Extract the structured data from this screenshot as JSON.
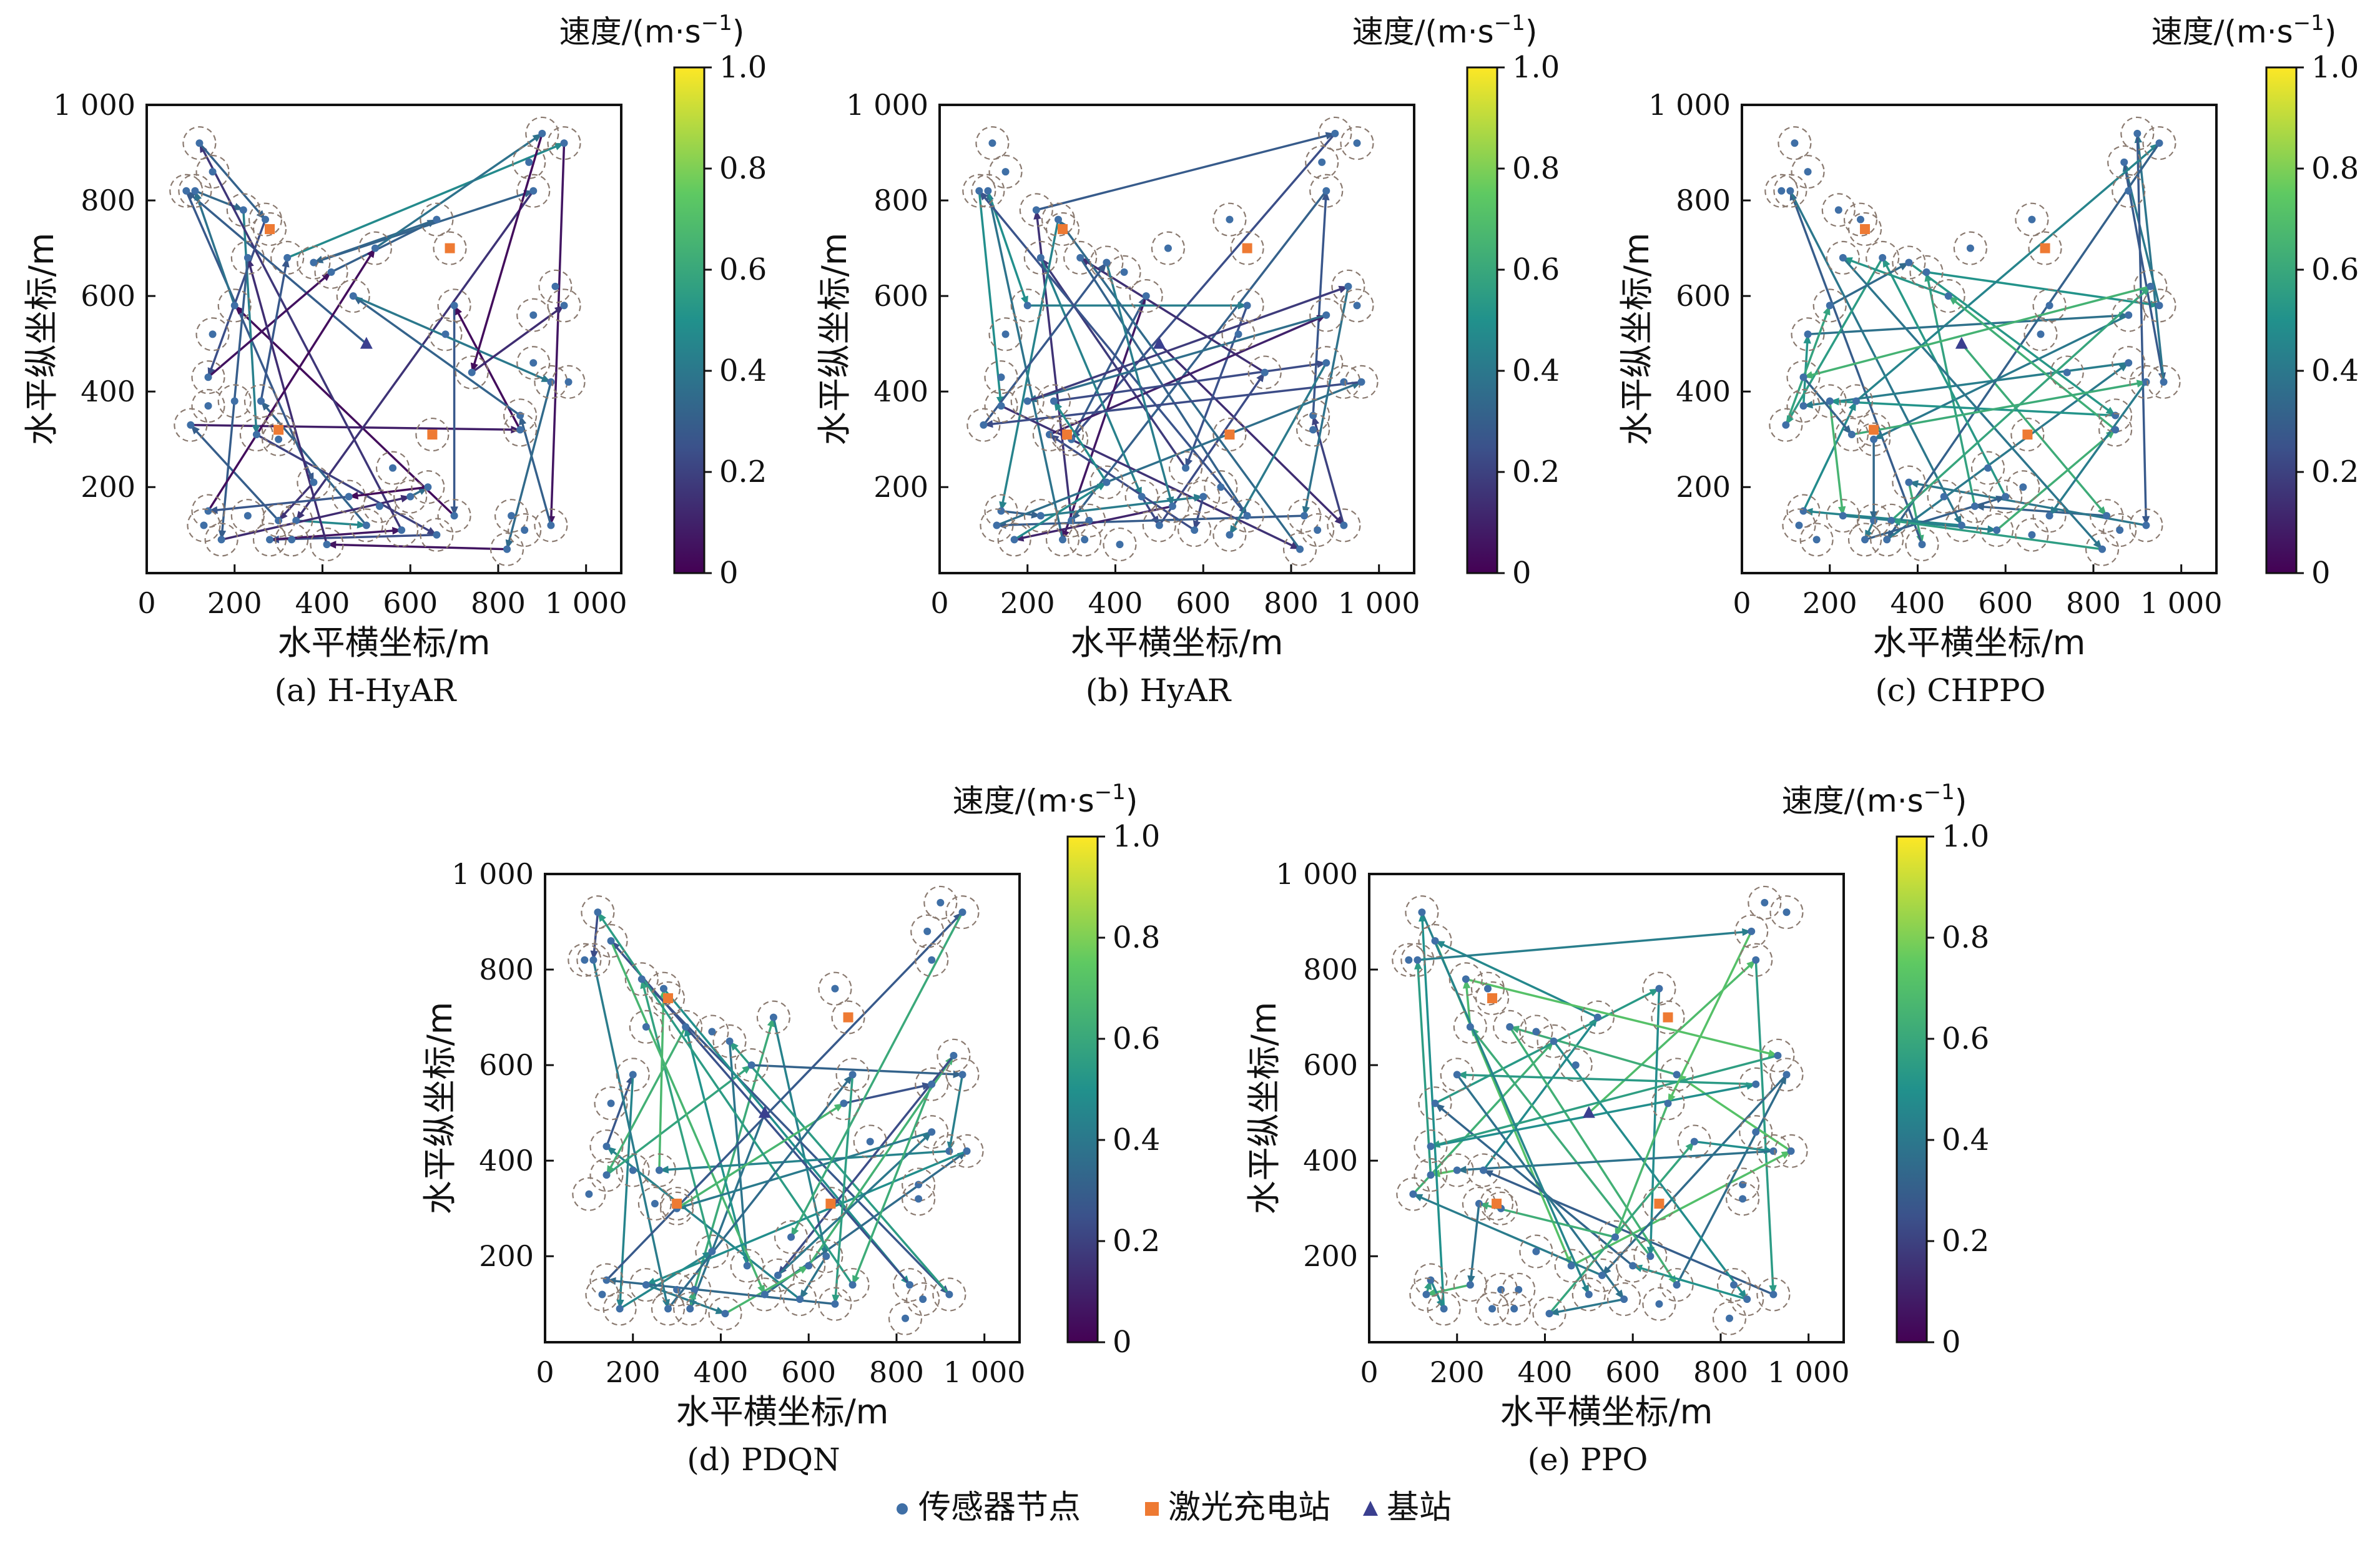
{
  "figure": {
    "legend": [
      {
        "label": "传感器节点",
        "marker": "circle",
        "color": "#3f6fa6"
      },
      {
        "label": "激光充电站",
        "marker": "square",
        "color": "#ee7a33"
      },
      {
        "label": "基站",
        "marker": "triangle",
        "color": "#3a3f8f"
      }
    ],
    "colorbar": {
      "label_prefix": "速度/(m·s",
      "label_sup": "−1",
      "label_suffix": ")",
      "ticks": [
        "0",
        "0.2",
        "0.4",
        "0.6",
        "0.8",
        "1.0"
      ],
      "colormap": "viridis",
      "stops": [
        "#440154",
        "#3b528b",
        "#21918c",
        "#5ec962",
        "#fde725"
      ]
    }
  },
  "chart_data": [
    {
      "type": "scatter",
      "title": "(a) H-HyAR",
      "xlabel": "水平横坐标/m",
      "ylabel": "水平纵坐标/m",
      "xlim": [
        0,
        1080
      ],
      "ylim": [
        20,
        1000
      ],
      "xticks": [
        "0",
        "200",
        "400",
        "600",
        "800",
        "1 000"
      ],
      "yticks": [
        "200",
        "400",
        "600",
        "800",
        "1 000"
      ],
      "sensor_nodes": [
        [
          120,
          920
        ],
        [
          110,
          820
        ],
        [
          150,
          860
        ],
        [
          90,
          820
        ],
        [
          220,
          780
        ],
        [
          270,
          760
        ],
        [
          230,
          680
        ],
        [
          320,
          680
        ],
        [
          200,
          580
        ],
        [
          150,
          520
        ],
        [
          140,
          430
        ],
        [
          100,
          330
        ],
        [
          140,
          370
        ],
        [
          200,
          380
        ],
        [
          260,
          380
        ],
        [
          250,
          310
        ],
        [
          300,
          300
        ],
        [
          140,
          150
        ],
        [
          170,
          90
        ],
        [
          130,
          120
        ],
        [
          230,
          140
        ],
        [
          300,
          130
        ],
        [
          280,
          90
        ],
        [
          340,
          130
        ],
        [
          330,
          90
        ],
        [
          410,
          80
        ],
        [
          380,
          210
        ],
        [
          460,
          180
        ],
        [
          500,
          120
        ],
        [
          580,
          110
        ],
        [
          560,
          240
        ],
        [
          640,
          200
        ],
        [
          700,
          140
        ],
        [
          660,
          100
        ],
        [
          830,
          140
        ],
        [
          860,
          110
        ],
        [
          820,
          70
        ],
        [
          920,
          120
        ],
        [
          880,
          460
        ],
        [
          920,
          420
        ],
        [
          850,
          350
        ],
        [
          850,
          320
        ],
        [
          960,
          420
        ],
        [
          930,
          620
        ],
        [
          880,
          560
        ],
        [
          950,
          580
        ],
        [
          700,
          580
        ],
        [
          680,
          520
        ],
        [
          740,
          440
        ],
        [
          660,
          760
        ],
        [
          880,
          820
        ],
        [
          900,
          940
        ],
        [
          950,
          920
        ],
        [
          870,
          880
        ],
        [
          600,
          180
        ],
        [
          530,
          160
        ],
        [
          420,
          650
        ],
        [
          380,
          670
        ],
        [
          470,
          600
        ],
        [
          520,
          700
        ]
      ],
      "charging_stations": [
        [
          280,
          740
        ],
        [
          690,
          700
        ],
        [
          300,
          320
        ],
        [
          650,
          310
        ]
      ],
      "base_station": [
        500,
        500
      ],
      "path_speed_mean": 0.25
    },
    {
      "type": "scatter",
      "title": "(b) HyAR",
      "xlabel": "水平横坐标/m",
      "ylabel": "水平纵坐标/m",
      "xlim": [
        0,
        1080
      ],
      "ylim": [
        20,
        1000
      ],
      "xticks": [
        "0",
        "200",
        "400",
        "600",
        "800",
        "1 000"
      ],
      "yticks": [
        "200",
        "400",
        "600",
        "800",
        "1 000"
      ],
      "sensor_nodes": [
        [
          120,
          920
        ],
        [
          110,
          820
        ],
        [
          150,
          860
        ],
        [
          90,
          820
        ],
        [
          220,
          780
        ],
        [
          270,
          760
        ],
        [
          230,
          680
        ],
        [
          320,
          680
        ],
        [
          200,
          580
        ],
        [
          150,
          520
        ],
        [
          140,
          430
        ],
        [
          100,
          330
        ],
        [
          140,
          370
        ],
        [
          200,
          380
        ],
        [
          260,
          380
        ],
        [
          250,
          310
        ],
        [
          300,
          300
        ],
        [
          140,
          150
        ],
        [
          170,
          90
        ],
        [
          130,
          120
        ],
        [
          230,
          140
        ],
        [
          300,
          130
        ],
        [
          280,
          90
        ],
        [
          340,
          130
        ],
        [
          330,
          90
        ],
        [
          410,
          80
        ],
        [
          380,
          210
        ],
        [
          460,
          180
        ],
        [
          500,
          120
        ],
        [
          580,
          110
        ],
        [
          560,
          240
        ],
        [
          640,
          200
        ],
        [
          700,
          140
        ],
        [
          660,
          100
        ],
        [
          830,
          140
        ],
        [
          860,
          110
        ],
        [
          820,
          70
        ],
        [
          920,
          120
        ],
        [
          880,
          460
        ],
        [
          920,
          420
        ],
        [
          850,
          350
        ],
        [
          850,
          320
        ],
        [
          960,
          420
        ],
        [
          930,
          620
        ],
        [
          880,
          560
        ],
        [
          950,
          580
        ],
        [
          700,
          580
        ],
        [
          680,
          520
        ],
        [
          740,
          440
        ],
        [
          660,
          760
        ],
        [
          880,
          820
        ],
        [
          900,
          940
        ],
        [
          950,
          920
        ],
        [
          870,
          880
        ],
        [
          600,
          180
        ],
        [
          530,
          160
        ],
        [
          420,
          650
        ],
        [
          380,
          670
        ],
        [
          470,
          600
        ],
        [
          520,
          700
        ]
      ],
      "charging_stations": [
        [
          280,
          740
        ],
        [
          700,
          700
        ],
        [
          290,
          310
        ],
        [
          660,
          310
        ]
      ],
      "base_station": [
        500,
        500
      ],
      "path_speed_mean": 0.28
    },
    {
      "type": "scatter",
      "title": "(c) CHPPO",
      "xlabel": "水平横坐标/m",
      "ylabel": "水平纵坐标/m",
      "xlim": [
        0,
        1080
      ],
      "ylim": [
        20,
        1000
      ],
      "xticks": [
        "0",
        "200",
        "400",
        "600",
        "800",
        "1 000"
      ],
      "yticks": [
        "200",
        "400",
        "600",
        "800",
        "1 000"
      ],
      "sensor_nodes": [
        [
          120,
          920
        ],
        [
          110,
          820
        ],
        [
          150,
          860
        ],
        [
          90,
          820
        ],
        [
          220,
          780
        ],
        [
          270,
          760
        ],
        [
          230,
          680
        ],
        [
          320,
          680
        ],
        [
          200,
          580
        ],
        [
          150,
          520
        ],
        [
          140,
          430
        ],
        [
          100,
          330
        ],
        [
          140,
          370
        ],
        [
          200,
          380
        ],
        [
          260,
          380
        ],
        [
          250,
          310
        ],
        [
          300,
          300
        ],
        [
          140,
          150
        ],
        [
          170,
          90
        ],
        [
          130,
          120
        ],
        [
          230,
          140
        ],
        [
          300,
          130
        ],
        [
          280,
          90
        ],
        [
          340,
          130
        ],
        [
          330,
          90
        ],
        [
          410,
          80
        ],
        [
          380,
          210
        ],
        [
          460,
          180
        ],
        [
          500,
          120
        ],
        [
          580,
          110
        ],
        [
          560,
          240
        ],
        [
          640,
          200
        ],
        [
          700,
          140
        ],
        [
          660,
          100
        ],
        [
          830,
          140
        ],
        [
          860,
          110
        ],
        [
          820,
          70
        ],
        [
          920,
          120
        ],
        [
          880,
          460
        ],
        [
          920,
          420
        ],
        [
          850,
          350
        ],
        [
          850,
          320
        ],
        [
          960,
          420
        ],
        [
          930,
          620
        ],
        [
          880,
          560
        ],
        [
          950,
          580
        ],
        [
          700,
          580
        ],
        [
          680,
          520
        ],
        [
          740,
          440
        ],
        [
          660,
          760
        ],
        [
          880,
          820
        ],
        [
          900,
          940
        ],
        [
          950,
          920
        ],
        [
          870,
          880
        ],
        [
          600,
          180
        ],
        [
          530,
          160
        ],
        [
          420,
          650
        ],
        [
          380,
          670
        ],
        [
          470,
          600
        ],
        [
          520,
          700
        ]
      ],
      "charging_stations": [
        [
          280,
          740
        ],
        [
          690,
          700
        ],
        [
          300,
          320
        ],
        [
          650,
          310
        ]
      ],
      "base_station": [
        500,
        500
      ],
      "path_speed_mean": 0.5
    },
    {
      "type": "scatter",
      "title": "(d) PDQN",
      "xlabel": "水平横坐标/m",
      "ylabel": "水平纵坐标/m",
      "xlim": [
        0,
        1080
      ],
      "ylim": [
        20,
        1000
      ],
      "xticks": [
        "0",
        "200",
        "400",
        "600",
        "800",
        "1 000"
      ],
      "yticks": [
        "200",
        "400",
        "600",
        "800",
        "1 000"
      ],
      "sensor_nodes": [
        [
          120,
          920
        ],
        [
          110,
          820
        ],
        [
          150,
          860
        ],
        [
          90,
          820
        ],
        [
          220,
          780
        ],
        [
          270,
          760
        ],
        [
          230,
          680
        ],
        [
          320,
          680
        ],
        [
          200,
          580
        ],
        [
          150,
          520
        ],
        [
          140,
          430
        ],
        [
          100,
          330
        ],
        [
          140,
          370
        ],
        [
          200,
          380
        ],
        [
          260,
          380
        ],
        [
          250,
          310
        ],
        [
          300,
          300
        ],
        [
          140,
          150
        ],
        [
          170,
          90
        ],
        [
          130,
          120
        ],
        [
          230,
          140
        ],
        [
          300,
          130
        ],
        [
          280,
          90
        ],
        [
          340,
          130
        ],
        [
          330,
          90
        ],
        [
          410,
          80
        ],
        [
          380,
          210
        ],
        [
          460,
          180
        ],
        [
          500,
          120
        ],
        [
          580,
          110
        ],
        [
          560,
          240
        ],
        [
          640,
          200
        ],
        [
          700,
          140
        ],
        [
          660,
          100
        ],
        [
          830,
          140
        ],
        [
          860,
          110
        ],
        [
          820,
          70
        ],
        [
          920,
          120
        ],
        [
          880,
          460
        ],
        [
          920,
          420
        ],
        [
          850,
          350
        ],
        [
          850,
          320
        ],
        [
          960,
          420
        ],
        [
          930,
          620
        ],
        [
          880,
          560
        ],
        [
          950,
          580
        ],
        [
          700,
          580
        ],
        [
          680,
          520
        ],
        [
          740,
          440
        ],
        [
          660,
          760
        ],
        [
          880,
          820
        ],
        [
          900,
          940
        ],
        [
          950,
          920
        ],
        [
          870,
          880
        ],
        [
          600,
          180
        ],
        [
          530,
          160
        ],
        [
          420,
          650
        ],
        [
          380,
          670
        ],
        [
          470,
          600
        ],
        [
          520,
          700
        ]
      ],
      "charging_stations": [
        [
          280,
          740
        ],
        [
          690,
          700
        ],
        [
          300,
          310
        ],
        [
          650,
          310
        ]
      ],
      "base_station": [
        500,
        500
      ],
      "path_speed_mean": 0.45
    },
    {
      "type": "scatter",
      "title": "(e) PPO",
      "xlabel": "水平横坐标/m",
      "ylabel": "水平纵坐标/m",
      "xlim": [
        0,
        1080
      ],
      "ylim": [
        20,
        1000
      ],
      "xticks": [
        "0",
        "200",
        "400",
        "600",
        "800",
        "1 000"
      ],
      "yticks": [
        "200",
        "400",
        "600",
        "800",
        "1 000"
      ],
      "sensor_nodes": [
        [
          120,
          920
        ],
        [
          110,
          820
        ],
        [
          150,
          860
        ],
        [
          90,
          820
        ],
        [
          220,
          780
        ],
        [
          270,
          760
        ],
        [
          230,
          680
        ],
        [
          320,
          680
        ],
        [
          200,
          580
        ],
        [
          150,
          520
        ],
        [
          140,
          430
        ],
        [
          100,
          330
        ],
        [
          140,
          370
        ],
        [
          200,
          380
        ],
        [
          260,
          380
        ],
        [
          250,
          310
        ],
        [
          300,
          300
        ],
        [
          140,
          150
        ],
        [
          170,
          90
        ],
        [
          130,
          120
        ],
        [
          230,
          140
        ],
        [
          300,
          130
        ],
        [
          280,
          90
        ],
        [
          340,
          130
        ],
        [
          330,
          90
        ],
        [
          410,
          80
        ],
        [
          380,
          210
        ],
        [
          460,
          180
        ],
        [
          500,
          120
        ],
        [
          580,
          110
        ],
        [
          560,
          240
        ],
        [
          640,
          200
        ],
        [
          700,
          140
        ],
        [
          660,
          100
        ],
        [
          830,
          140
        ],
        [
          860,
          110
        ],
        [
          820,
          70
        ],
        [
          920,
          120
        ],
        [
          880,
          460
        ],
        [
          920,
          420
        ],
        [
          850,
          350
        ],
        [
          850,
          320
        ],
        [
          960,
          420
        ],
        [
          930,
          620
        ],
        [
          880,
          560
        ],
        [
          950,
          580
        ],
        [
          700,
          580
        ],
        [
          680,
          520
        ],
        [
          740,
          440
        ],
        [
          660,
          760
        ],
        [
          880,
          820
        ],
        [
          900,
          940
        ],
        [
          950,
          920
        ],
        [
          870,
          880
        ],
        [
          600,
          180
        ],
        [
          530,
          160
        ],
        [
          420,
          650
        ],
        [
          380,
          670
        ],
        [
          470,
          600
        ],
        [
          520,
          700
        ]
      ],
      "charging_stations": [
        [
          280,
          740
        ],
        [
          680,
          700
        ],
        [
          290,
          310
        ],
        [
          660,
          310
        ]
      ],
      "base_station": [
        500,
        500
      ],
      "path_speed_mean": 0.5
    }
  ]
}
